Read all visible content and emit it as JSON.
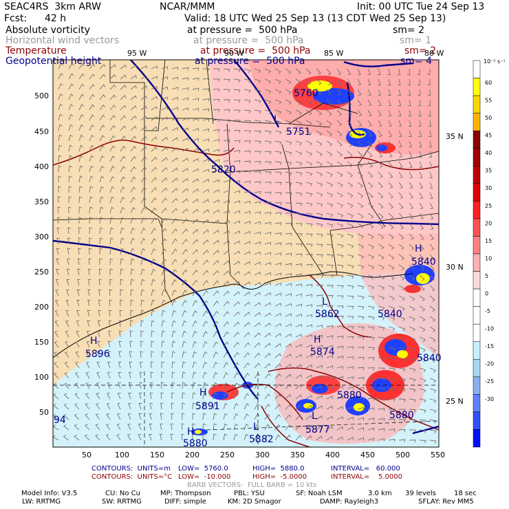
{
  "header": {
    "model": "SEAC4RS  3km ARW",
    "center": "NCAR/MMM",
    "init": "Init: 00 UTC Tue 24 Sep 13",
    "fcst_label": "Fcst:",
    "fcst_value": "42 h",
    "valid": "Valid: 18 UTC Wed 25 Sep 13 (13 CDT Wed 25 Sep 13)"
  },
  "fields": [
    {
      "name": "Absolute vorticity",
      "level": "at pressure =  500 hPa",
      "sm": "sm= 2",
      "color": "#000000"
    },
    {
      "name": "Horizontal wind vectors",
      "level": "at pressure =  500 hPa",
      "sm": "sm= 1",
      "color": "#9a9a9a"
    },
    {
      "name": "Temperature",
      "level": "at pressure =  500 hPa",
      "sm": "sm= 2",
      "color": "#8b0000"
    },
    {
      "name": "Geopotential height",
      "level": "at pressure =  500 hPa",
      "sm": "sm= 4",
      "color": "#00008b"
    }
  ],
  "axes": {
    "x_ticks": [
      "50",
      "100",
      "150",
      "200",
      "250",
      "300",
      "350",
      "400",
      "450",
      "500",
      "550"
    ],
    "y_ticks": [
      "500",
      "450",
      "400",
      "350",
      "300",
      "250",
      "200",
      "150",
      "100",
      "50"
    ],
    "lon_labels": [
      "95 W",
      "90 W",
      "85 W",
      "80 W"
    ],
    "lat_labels": [
      "35 N",
      "30 N",
      "25 N"
    ]
  },
  "map_labels": {
    "height_contours": [
      "5760",
      "5751",
      "5820",
      "5840",
      "5840",
      "5896",
      "5891",
      "5880",
      "5882",
      "5877",
      "5874",
      "5862",
      "5840",
      "5880",
      "5880"
    ],
    "highs_lows": [
      "L",
      "L",
      "H",
      "H",
      "H",
      "H",
      "L",
      "L",
      "L",
      "H"
    ],
    "corner_value": "94"
  },
  "colorbar": {
    "unit": "10⁻⁵ s⁻¹",
    "ticks": [
      "60",
      "55",
      "50",
      "45",
      "40",
      "35",
      "30",
      "25",
      "20",
      "15",
      "10",
      "5",
      "0",
      "-5",
      "-10",
      "-15",
      "-20",
      "-25",
      "-30"
    ],
    "colors": [
      "#ffffff",
      "#ffff00",
      "#ffd700",
      "#ffb300",
      "#8b0000",
      "#a00000",
      "#c00000",
      "#e00000",
      "#ff2020",
      "#ff5050",
      "#ff8080",
      "#ffb0b0",
      "#ffd8d8",
      "#ffffff",
      "#ffffff",
      "#ffffff",
      "#c8f0ff",
      "#a8d8f0",
      "#88b0f0",
      "#6080ff",
      "#3050ff",
      "#0010ff"
    ]
  },
  "footer": {
    "contours1_a": "CONTOURS:  UNITS=m",
    "contours1_b": "LOW=  5760.0",
    "contours1_c": "HIGH=  5880.0",
    "contours1_d": "INTERVAL=   60.000",
    "contours2_a": "CONTOURS:  UNITS=°C",
    "contours2_b": "LOW=  -10.000",
    "contours2_c": "HIGH=  -5.0000",
    "contours2_d": "INTERVAL=    5.0000",
    "barbs": "BARB VECTORS:  FULL BARB = 10 kts",
    "model_info": "Model Info: V3.5",
    "cu": "CU: No Cu",
    "mp": "MP: Thompson",
    "pbl": "PBL: YSU",
    "sf": "SF: Noah LSM",
    "grid": "3.0 km",
    "levels": "39 levels",
    "dt": "18 sec",
    "lw": "LW: RRTMG",
    "sw": "SW: RRTMG",
    "diff": "DIFF: simple",
    "km": "KM: 2D Smagor",
    "damp": "DAMP: Rayleigh3",
    "sflay": "SFLAY: Rev MM5"
  }
}
